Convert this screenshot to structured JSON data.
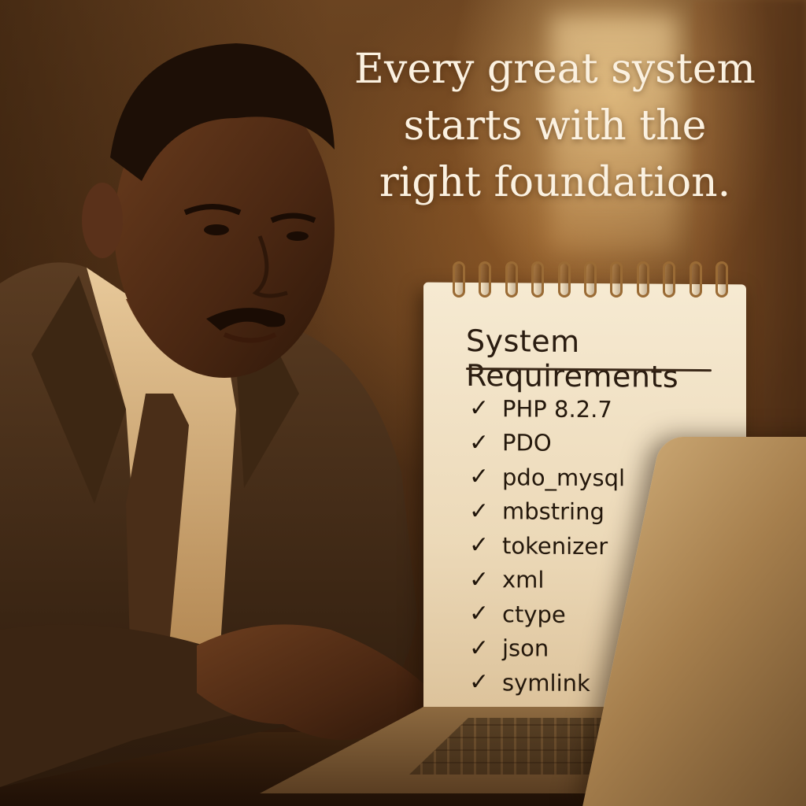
{
  "headline": {
    "line1": "Every great system",
    "line2": "starts with the",
    "line3": "right foundation."
  },
  "notepad": {
    "title": "System Requirements",
    "items": [
      "PHP 8.2.7",
      "PDO",
      "pdo_mysql",
      "mbstring",
      "tokenizer",
      "xml",
      "ctype",
      "json",
      "symlink"
    ],
    "check_glyph": "✓",
    "check_icon": "checkmark-icon"
  },
  "colors": {
    "headline_text": "#fbf1e0",
    "paper": "#f3e5c9",
    "ink": "#24180c",
    "warm_light": "#ffd68c"
  }
}
